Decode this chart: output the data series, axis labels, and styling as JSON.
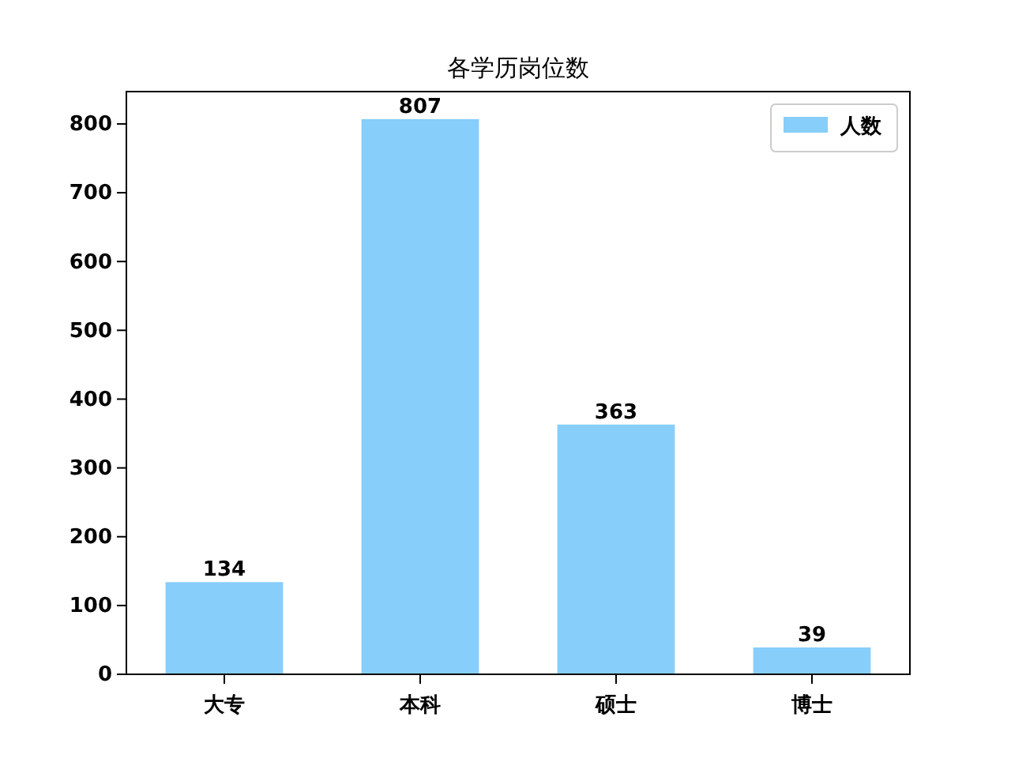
{
  "chart_data": {
    "type": "bar",
    "title": "各学历岗位数",
    "categories": [
      "大专",
      "本科",
      "硕士",
      "博士"
    ],
    "series": [
      {
        "name": "人数",
        "color": "#87cefa",
        "values": [
          134,
          807,
          363,
          39
        ]
      }
    ],
    "ylim": [
      0,
      847
    ],
    "yticks": [
      0,
      100,
      200,
      300,
      400,
      500,
      600,
      700,
      800
    ],
    "data_labels": true,
    "legend": "top right",
    "grid": false
  }
}
